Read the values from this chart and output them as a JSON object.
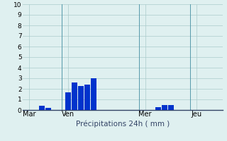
{
  "title": "",
  "xlabel": "Précipitations 24h ( mm )",
  "ylim": [
    0,
    10
  ],
  "yticks": [
    0,
    1,
    2,
    3,
    4,
    5,
    6,
    7,
    8,
    9,
    10
  ],
  "background_color": "#dff0f0",
  "bar_color": "#0033cc",
  "grid_color": "#aacccc",
  "x_tick_labels": [
    "Mar",
    "Ven",
    "Mer",
    "Jeu"
  ],
  "x_tick_positions": [
    0,
    24,
    72,
    104
  ],
  "bar_positions": [
    8,
    12,
    24,
    28,
    32,
    36,
    40,
    80,
    84,
    88
  ],
  "bar_heights": [
    0.4,
    0.2,
    1.7,
    2.6,
    2.3,
    2.4,
    3.0,
    0.3,
    0.45,
    0.45
  ],
  "xlim": [
    -4,
    120
  ],
  "vline_positions": [
    24,
    72,
    104
  ],
  "vline_color": "#5599aa",
  "spine_color": "#334466"
}
